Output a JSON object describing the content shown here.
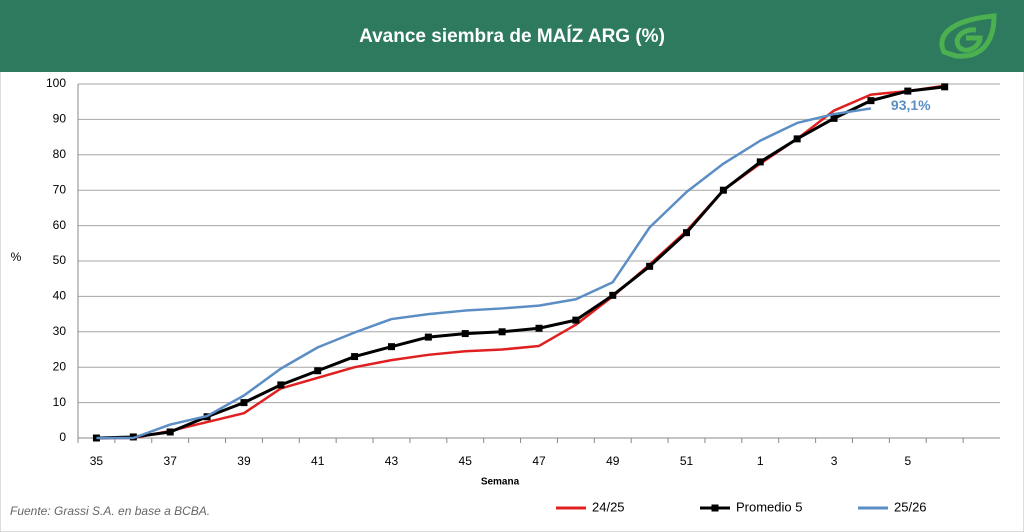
{
  "chart_data": {
    "type": "line",
    "title": "Avance siembra de MAÍZ ARG (%)",
    "y_label": "%",
    "x_label": "Semana",
    "source": "Fuente: Grassi S.A. en base a BCBA.",
    "categories": [
      "35",
      null,
      "37",
      null,
      "39",
      null,
      "41",
      null,
      "43",
      null,
      "45",
      null,
      "47",
      null,
      "49",
      null,
      "51",
      null,
      "1",
      null,
      "3",
      null,
      "5",
      null,
      null
    ],
    "series": [
      {
        "name": "24/25",
        "color": "#e02020",
        "marker": false,
        "values": [
          0,
          0,
          2,
          4.5,
          7,
          14,
          17,
          20,
          22,
          23.5,
          24.5,
          25,
          26,
          32,
          40,
          49,
          58.5,
          70,
          77.5,
          84.5,
          92.5,
          97,
          98,
          99.5,
          null
        ]
      },
      {
        "name": "Promedio 5",
        "color": "#000000",
        "marker": true,
        "values": [
          0,
          0.3,
          1.7,
          6,
          10,
          15,
          19,
          23,
          25.8,
          28.5,
          29.5,
          30,
          31,
          33.3,
          40.3,
          48.5,
          58,
          70,
          78,
          84.5,
          90.3,
          95.3,
          98,
          99.2,
          null
        ]
      },
      {
        "name": "25/26",
        "color": "#5b8ec4",
        "marker": false,
        "values": [
          0,
          0,
          3.8,
          6.2,
          12,
          19.6,
          25.6,
          29.8,
          33.6,
          35,
          36,
          36.6,
          37.4,
          39.2,
          44,
          59.5,
          69.5,
          77.5,
          84,
          89,
          91.5,
          93.1,
          null,
          null,
          null
        ],
        "value_labels": [
          null,
          null,
          null,
          null,
          null,
          null,
          null,
          null,
          null,
          null,
          null,
          null,
          null,
          null,
          null,
          null,
          null,
          null,
          null,
          null,
          null,
          "93,1%",
          null,
          null,
          null
        ]
      }
    ],
    "ylim": [
      0,
      100
    ],
    "yticks": [
      0,
      10,
      20,
      30,
      40,
      50,
      60,
      70,
      80,
      90,
      100
    ],
    "grid": true,
    "legend": "bottom"
  }
}
